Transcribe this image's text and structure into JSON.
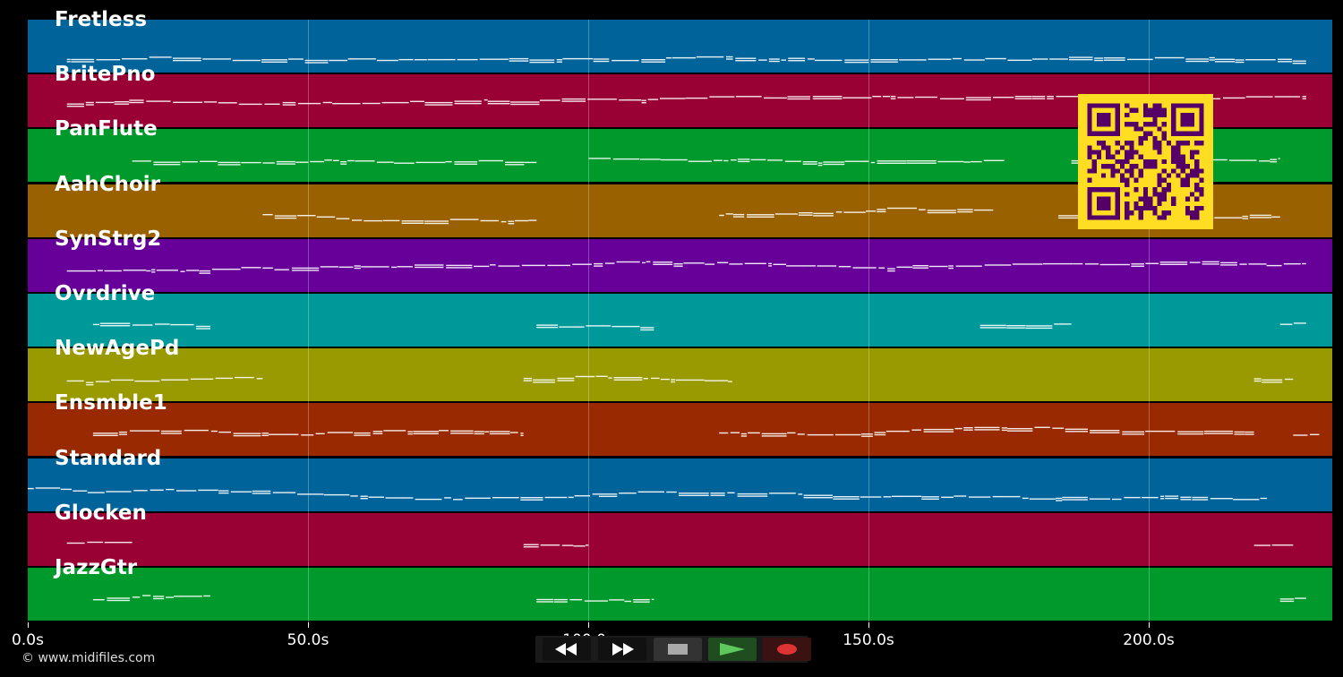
{
  "tracks": [
    {
      "name": "Fretless",
      "color": "#00649a"
    },
    {
      "name": "BritePno",
      "color": "#990033"
    },
    {
      "name": "PanFlute",
      "color": "#00992b"
    },
    {
      "name": "AahChoir",
      "color": "#996100"
    },
    {
      "name": "SynStrg2",
      "color": "#660099"
    },
    {
      "name": "Ovrdrive",
      "color": "#009999"
    },
    {
      "name": "NewAgePd",
      "color": "#999900"
    },
    {
      "name": "Ensmble1",
      "color": "#992900"
    },
    {
      "name": "Standard",
      "color": "#00649a"
    },
    {
      "name": "Glocken",
      "color": "#990033"
    },
    {
      "name": "JazzGtr",
      "color": "#00992b"
    }
  ],
  "timeline": {
    "ticks": [
      "0.0s",
      "50.0s",
      "100.0s",
      "150.0s",
      "200.0s"
    ]
  },
  "copyright": "© www.midifiles.com",
  "transport": {
    "rewind": "rewind-icon",
    "fast_forward": "fast-forward-icon",
    "stop": "stop-icon",
    "play": "play-icon",
    "record": "record-icon"
  },
  "colors": {
    "qr_bg": "#ffdd22",
    "qr_fg": "#550066",
    "notes": "#ffffff"
  }
}
